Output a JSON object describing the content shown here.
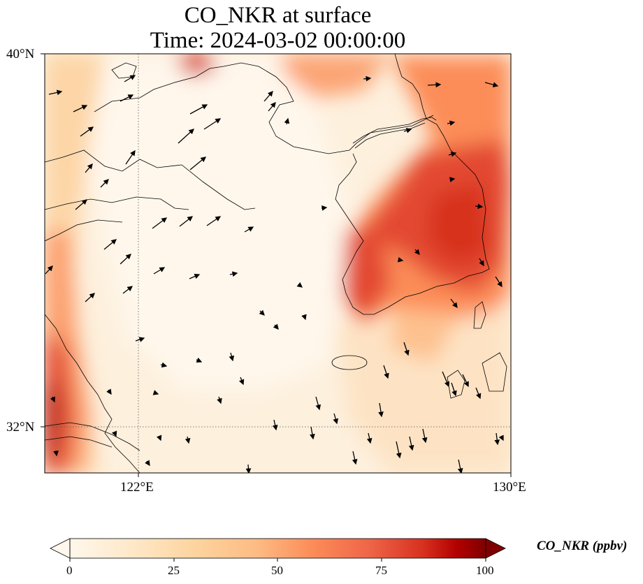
{
  "title": {
    "line1": "CO_NKR at surface",
    "line2": "Time: 2024-03-02 00:00:00"
  },
  "map": {
    "projection": "PlateCarree",
    "extent": {
      "lon": [
        120,
        130
      ],
      "lat": [
        31,
        40
      ]
    },
    "lat_labels": [
      "40°N",
      "32°N"
    ],
    "lon_labels": [
      "122°E",
      "130°E"
    ],
    "gridlines": {
      "lon": [
        122
      ],
      "lat": [
        32
      ],
      "style": "dotted"
    },
    "features": [
      "coastline",
      "wind-vectors"
    ]
  },
  "colorbar": {
    "label": "CO_NKR (ppbv)",
    "ticks": [
      "0",
      "25",
      "50",
      "75",
      "100"
    ],
    "range": [
      0,
      100
    ],
    "colormap": "OrRd",
    "extend": "both"
  },
  "colors": {
    "low": "#fff7ec",
    "mid": "#fc8d59",
    "high": "#7f0000"
  }
}
